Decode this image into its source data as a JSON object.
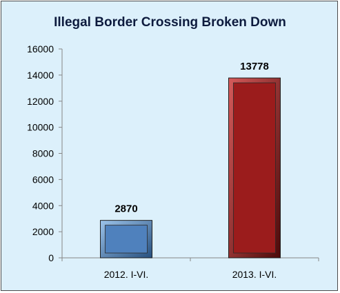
{
  "chart_data": {
    "type": "bar",
    "title": "Illegal Border Crossing Broken Down",
    "categories": [
      "2012. I-VI.",
      "2013. I-VI."
    ],
    "values": [
      2870,
      13778
    ],
    "data_labels": [
      "2870",
      "13778"
    ],
    "bar_colors": [
      "#4f81bd",
      "#9b1c1c"
    ],
    "ylim": [
      0,
      16000
    ],
    "y_ticks": [
      0,
      2000,
      4000,
      6000,
      8000,
      10000,
      12000,
      14000,
      16000
    ],
    "y_tick_labels": [
      "0",
      "2000",
      "4000",
      "6000",
      "8000",
      "10000",
      "12000",
      "14000",
      "16000"
    ],
    "xlabel": "",
    "ylabel": "",
    "grid": false,
    "legend": "none",
    "background_color": "#dcf0fb"
  }
}
